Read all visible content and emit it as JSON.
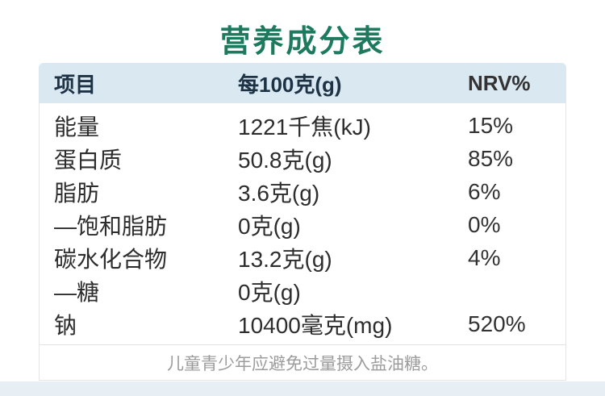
{
  "page": {
    "background_color": "#ffffff",
    "bottom_strip_color": "#e8eff4"
  },
  "title": {
    "text": "营养成分表",
    "color": "#1e7a5f"
  },
  "table": {
    "header": {
      "col_item": "项目",
      "col_per100g": "每100克(g)",
      "col_nrv": "NRV%",
      "background_color": "#d9e8f1",
      "text_color": "#1d3245"
    },
    "rows": [
      {
        "item": "能量",
        "per100g": "1221千焦(kJ)",
        "nrv": "15%"
      },
      {
        "item": "蛋白质",
        "per100g": "50.8克(g)",
        "nrv": "85%"
      },
      {
        "item": "脂肪",
        "per100g": "3.6克(g)",
        "nrv": "6%"
      },
      {
        "item": "—饱和脂肪",
        "per100g": "0克(g)",
        "nrv": "0%"
      },
      {
        "item": "碳水化合物",
        "per100g": "13.2克(g)",
        "nrv": "4%"
      },
      {
        "item": "—糖",
        "per100g": "0克(g)",
        "nrv": ""
      },
      {
        "item": "钠",
        "per100g": "10400毫克(mg)",
        "nrv": "520%"
      }
    ],
    "footer_note": "儿童青少年应避免过量摄入盐油糖。"
  }
}
